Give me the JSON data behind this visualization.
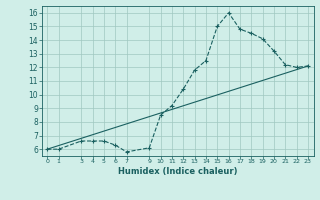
{
  "title": "",
  "xlabel": "Humidex (Indice chaleur)",
  "ylabel": "",
  "bg_color": "#d0eee8",
  "grid_color": "#a0c8c0",
  "line_color": "#1a6060",
  "xlim": [
    -0.5,
    23.5
  ],
  "ylim": [
    5.5,
    16.5
  ],
  "yticks": [
    6,
    7,
    8,
    9,
    10,
    11,
    12,
    13,
    14,
    15,
    16
  ],
  "xticks": [
    0,
    1,
    3,
    4,
    5,
    6,
    7,
    9,
    10,
    11,
    12,
    13,
    14,
    15,
    16,
    17,
    18,
    19,
    20,
    21,
    22,
    23
  ],
  "curve_x": [
    0,
    1,
    3,
    4,
    5,
    6,
    7,
    9,
    10,
    11,
    12,
    13,
    14,
    15,
    16,
    17,
    18,
    19,
    20,
    21,
    22,
    23
  ],
  "curve_y": [
    6.0,
    6.0,
    6.6,
    6.6,
    6.6,
    6.3,
    5.8,
    6.1,
    8.5,
    9.2,
    10.4,
    11.8,
    12.5,
    15.0,
    16.0,
    14.8,
    14.5,
    14.1,
    13.2,
    12.2,
    12.0,
    12.1
  ],
  "line_x": [
    0,
    23
  ],
  "line_y": [
    6.0,
    12.1
  ]
}
